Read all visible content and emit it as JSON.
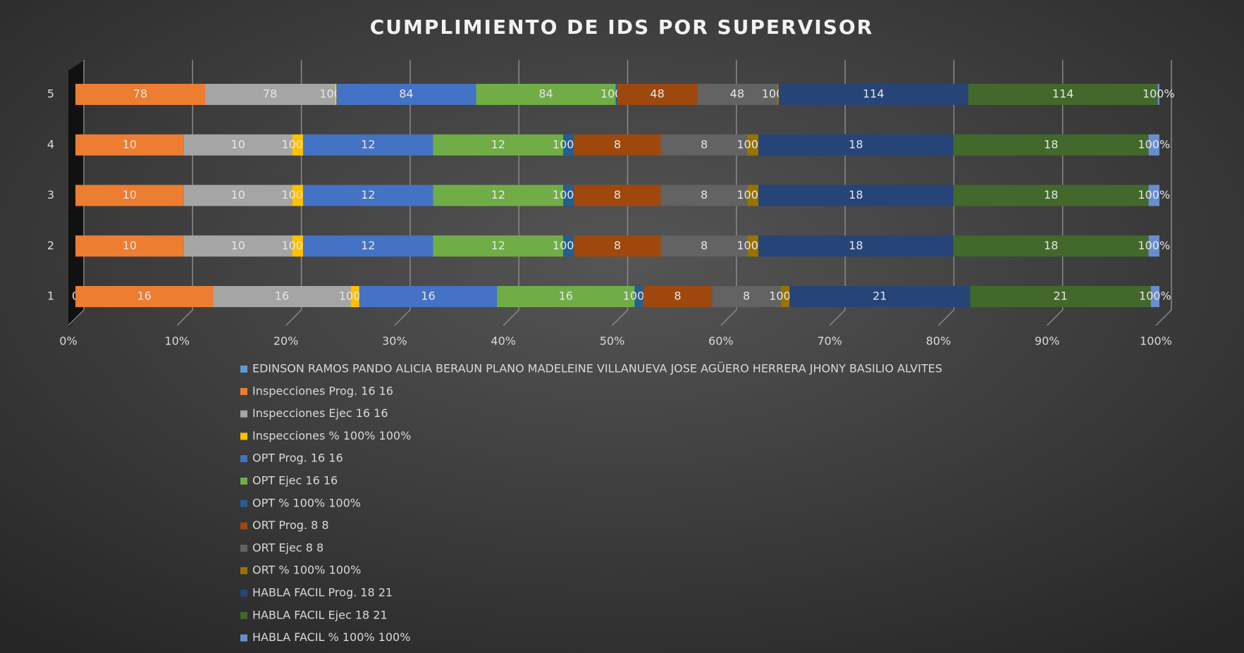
{
  "chart_data": {
    "type": "bar",
    "orientation": "horizontal",
    "stacking": "percent",
    "title": "CUMPLIMIENTO DE IDS POR SUPERVISOR",
    "categories": [
      "1",
      "2",
      "3",
      "4",
      "5"
    ],
    "series": [
      {
        "name": "EDINSON RAMOS PANDO ALICIA BERAUN  PLANO MADELEINE VILLANUEVA JOSE AGÜERO HERRERA JHONY BASILIO ALVITES",
        "color": "#5b9bd5",
        "values": [
          0,
          0,
          0,
          0,
          0
        ],
        "value_labels": [
          "0",
          null,
          null,
          null,
          null
        ]
      },
      {
        "name": "Inspecciones Prog. 16 16",
        "color": "#ed7d31",
        "values": [
          16,
          10,
          10,
          10,
          78
        ]
      },
      {
        "name": "Inspecciones Ejec 16 16",
        "color": "#a5a5a5",
        "values": [
          16,
          10,
          10,
          10,
          78
        ]
      },
      {
        "name": "Inspecciones % 100% 100%",
        "color": "#ffc000",
        "values": [
          1,
          1,
          1,
          1,
          1
        ],
        "value_labels": [
          "100%",
          "100%",
          "100%",
          "100%",
          "100%"
        ]
      },
      {
        "name": "OPT Prog. 16 16",
        "color": "#4472c4",
        "values": [
          16,
          12,
          12,
          12,
          84
        ]
      },
      {
        "name": "OPT Ejec 16 16",
        "color": "#70ad47",
        "values": [
          16,
          12,
          12,
          12,
          84
        ]
      },
      {
        "name": "OPT % 100% 100%",
        "color": "#255e91",
        "values": [
          1,
          1,
          1,
          1,
          1
        ],
        "value_labels": [
          "100%",
          "100%",
          "100%",
          "100%",
          "100%"
        ]
      },
      {
        "name": "ORT Prog. 8 8",
        "color": "#9e480e",
        "values": [
          8,
          8,
          8,
          8,
          48
        ]
      },
      {
        "name": "ORT Ejec 8 8",
        "color": "#636363",
        "values": [
          8,
          8,
          8,
          8,
          48
        ]
      },
      {
        "name": "ORT % 100% 100%",
        "color": "#997300",
        "values": [
          1,
          1,
          1,
          1,
          1
        ],
        "value_labels": [
          "100%",
          "100%",
          "100%",
          "100%",
          "100%"
        ]
      },
      {
        "name": "HABLA FACIL  Prog. 18 21",
        "color": "#264478",
        "values": [
          21,
          18,
          18,
          18,
          114
        ]
      },
      {
        "name": "HABLA FACIL  Ejec 18 21",
        "color": "#43682b",
        "values": [
          21,
          18,
          18,
          18,
          114
        ]
      },
      {
        "name": "HABLA FACIL  % 100% 100%",
        "color": "#698ed0",
        "values": [
          1,
          1,
          1,
          1,
          1
        ],
        "value_labels": [
          "100%",
          "100%",
          "100%",
          "100%",
          "100%"
        ]
      }
    ],
    "xlim": [
      0,
      100
    ],
    "xticks": [
      {
        "value": 0,
        "label": "0%"
      },
      {
        "value": 10,
        "label": "10%"
      },
      {
        "value": 20,
        "label": "20%"
      },
      {
        "value": 30,
        "label": "30%"
      },
      {
        "value": 40,
        "label": "40%"
      },
      {
        "value": 50,
        "label": "50%"
      },
      {
        "value": 60,
        "label": "60%"
      },
      {
        "value": 70,
        "label": "70%"
      },
      {
        "value": 80,
        "label": "80%"
      },
      {
        "value": 90,
        "label": "90%"
      },
      {
        "value": 100,
        "label": "100%"
      }
    ],
    "grid": true,
    "legend": "bottom"
  }
}
